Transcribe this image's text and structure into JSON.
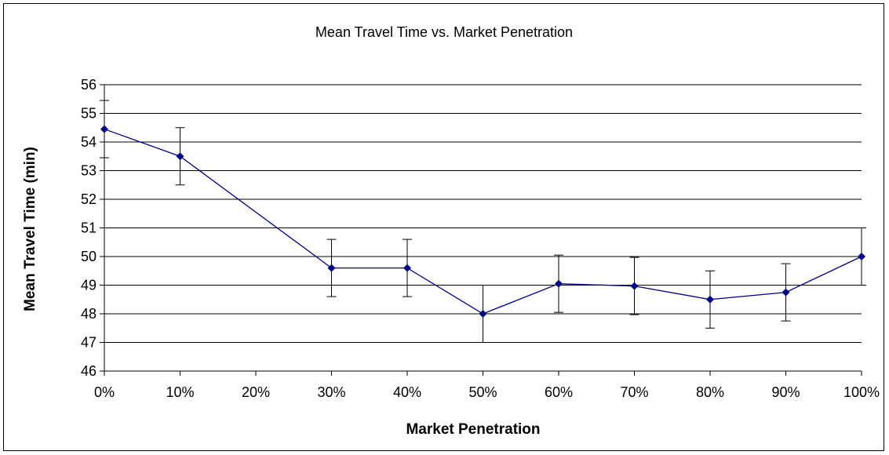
{
  "chart_data": {
    "type": "line",
    "title": "Mean Travel Time vs. Market Penetration",
    "xlabel": "Market Penetration",
    "ylabel": "Mean Travel Time (min)",
    "categories": [
      "0%",
      "10%",
      "20%",
      "30%",
      "40%",
      "50%",
      "60%",
      "70%",
      "80%",
      "90%",
      "100%"
    ],
    "points": [
      {
        "x": "0%",
        "y": 54.45,
        "err_low": 53.45,
        "err_high": 55.45
      },
      {
        "x": "10%",
        "y": 53.5,
        "err_low": 52.5,
        "err_high": 54.5
      },
      {
        "x": "30%",
        "y": 49.6,
        "err_low": 48.6,
        "err_high": 50.6
      },
      {
        "x": "40%",
        "y": 49.6,
        "err_low": 48.6,
        "err_high": 50.6
      },
      {
        "x": "50%",
        "y": 48.0,
        "err_low": 47.0,
        "err_high": 49.0
      },
      {
        "x": "60%",
        "y": 49.05,
        "err_low": 48.05,
        "err_high": 50.05
      },
      {
        "x": "70%",
        "y": 48.97,
        "err_low": 47.97,
        "err_high": 49.97
      },
      {
        "x": "80%",
        "y": 48.5,
        "err_low": 47.5,
        "err_high": 49.5
      },
      {
        "x": "90%",
        "y": 48.75,
        "err_low": 47.75,
        "err_high": 49.75
      },
      {
        "x": "100%",
        "y": 50.0,
        "err_low": 49.0,
        "err_high": 51.0
      }
    ],
    "ylim": [
      46,
      56
    ],
    "yticks": [
      46,
      47,
      48,
      49,
      50,
      51,
      52,
      53,
      54,
      55,
      56
    ],
    "grid": "horizontal",
    "colors": {
      "line": "#000080",
      "marker": "#000080",
      "error_bar": "#000000",
      "grid": "#000000"
    }
  }
}
